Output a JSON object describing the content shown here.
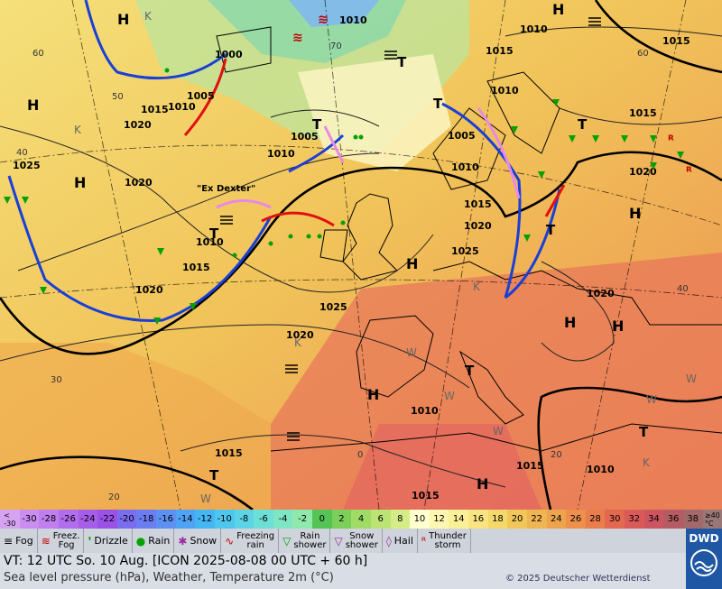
{
  "scale": {
    "labels": [
      "<\n-30",
      "-30",
      "-28",
      "-26",
      "-24",
      "-22",
      "-20",
      "-18",
      "-16",
      "-14",
      "-12",
      "-10",
      "-8",
      "-6",
      "-4",
      "-2",
      "0",
      "2",
      "4",
      "6",
      "8",
      "10",
      "12",
      "14",
      "16",
      "18",
      "20",
      "22",
      "24",
      "26",
      "28",
      "30",
      "32",
      "34",
      "36",
      "38",
      "≥40\n°C"
    ],
    "colors": [
      "#d6a3f3",
      "#c98ef0",
      "#bf7fef",
      "#b26ded",
      "#a65de9",
      "#9a52e6",
      "#7c6cf0",
      "#6b7ef1",
      "#5c90f3",
      "#4ea3f4",
      "#45b6f4",
      "#4fc6ee",
      "#5dd4e6",
      "#6ddfd6",
      "#7fe6c3",
      "#8fe9ad",
      "#54c454",
      "#7ccf5a",
      "#9fdb66",
      "#bce474",
      "#d6ec86",
      "#ffffd0",
      "#fff7b0",
      "#fbef98",
      "#f8e581",
      "#f4d86b",
      "#f1c75a",
      "#efb552",
      "#eea34d",
      "#ec904b",
      "#e97d4c",
      "#e26950",
      "#d95a58",
      "#cc5560",
      "#b55b63",
      "#a3686a",
      "#9a7777"
    ]
  },
  "legend": [
    {
      "id": "fog",
      "symbol": "≡",
      "label": "Fog",
      "color": "#000000"
    },
    {
      "id": "freezing-fog",
      "symbol": "≋",
      "label": "Freez.\nFog",
      "color": "#c00000"
    },
    {
      "id": "drizzle",
      "symbol": "❜",
      "label": "Drizzle",
      "color": "#00a000"
    },
    {
      "id": "rain",
      "symbol": "●",
      "label": "Rain",
      "color": "#00a000"
    },
    {
      "id": "snow",
      "symbol": "✱",
      "label": "Snow",
      "color": "#9b2aa0"
    },
    {
      "id": "freezing-rain",
      "symbol": "∿",
      "label": "Freezing\nrain",
      "color": "#c00000"
    },
    {
      "id": "rain-shower",
      "symbol": "▽",
      "label": "Rain\nshower",
      "color": "#00a000"
    },
    {
      "id": "snow-shower",
      "symbol": "▽",
      "label": "Snow\nshower",
      "color": "#9b2aa0"
    },
    {
      "id": "hail",
      "symbol": "◊",
      "label": "Hail",
      "color": "#9b2aa0"
    },
    {
      "id": "thunderstorm",
      "symbol": "ᴿ",
      "label": "Thunder\nstorm",
      "color": "#c00000"
    }
  ],
  "vt": "VT: 12 UTC So.  10 Aug. [ICON 2025-08-08  00 UTC + 60 h]",
  "description": "Sea level pressure (hPa), Weather, Temperature 2m (°C)",
  "copyright": "© 2025 Deutscher Wetterdienst",
  "logo": "DWD",
  "map": {
    "highs": [
      "H",
      "H",
      "H",
      "H",
      "H",
      "H",
      "H",
      "H",
      "H",
      "H"
    ],
    "lows": [
      "T",
      "T",
      "T",
      "T",
      "T",
      "T",
      "T",
      "T",
      "T"
    ],
    "isobars": [
      "1010",
      "1015",
      "1010",
      "1020",
      "1005",
      "1000",
      "1010",
      "1005",
      "1025",
      "1015",
      "1020",
      "1025",
      "1010",
      "1005",
      "1010",
      "1015",
      "1020",
      "1010",
      "1015",
      "1010",
      "1015",
      "1020",
      "1020",
      "1015",
      "1010",
      "1015",
      "1025",
      "1015",
      "1015",
      "1010",
      "1020",
      "1020"
    ],
    "storm_name": "\"Ex Dexter\"",
    "temp_labels": [
      "60",
      "50",
      "40",
      "30",
      "20",
      "70",
      "40",
      "20",
      "0",
      "60"
    ],
    "region_labels": [
      "K",
      "K",
      "K",
      "W",
      "W",
      "W",
      "W",
      "W",
      "K",
      "K",
      "W"
    ]
  }
}
